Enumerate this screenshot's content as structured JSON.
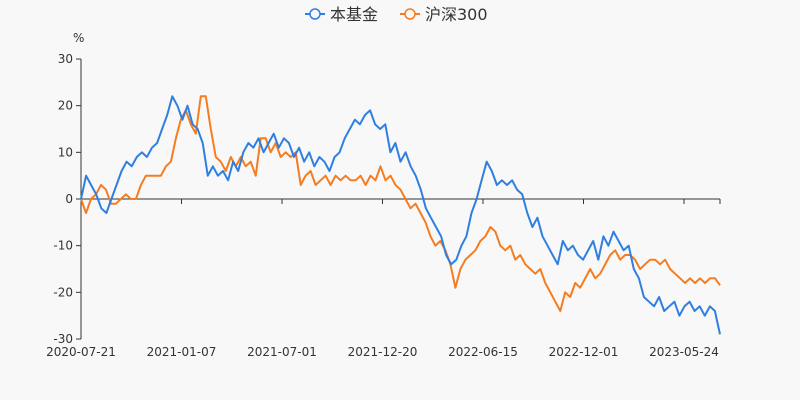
{
  "chart_data": {
    "type": "line",
    "title": "",
    "ylabel": "%",
    "xlabel": "",
    "ylim": [
      -30,
      30
    ],
    "yticks": [
      30,
      20,
      10,
      0,
      -10,
      -20,
      -30
    ],
    "xtick_labels": [
      "2020-07-21",
      "2021-01-07",
      "2021-07-01",
      "2021-12-20",
      "2022-06-15",
      "2022-12-01",
      "2023-05-24"
    ],
    "legend_position": "top-center",
    "series": [
      {
        "name": "本基金",
        "color": "#2f7fe0",
        "values": [
          0,
          5,
          3,
          1,
          -2,
          -3,
          0,
          3,
          6,
          8,
          7,
          9,
          10,
          9,
          11,
          12,
          15,
          18,
          22,
          20,
          17,
          20,
          16,
          15,
          12,
          5,
          7,
          5,
          6,
          4,
          8,
          6,
          10,
          12,
          11,
          13,
          10,
          12,
          14,
          11,
          13,
          12,
          9,
          11,
          8,
          10,
          7,
          9,
          8,
          6,
          9,
          10,
          13,
          15,
          17,
          16,
          18,
          19,
          16,
          15,
          16,
          10,
          12,
          8,
          10,
          7,
          5,
          2,
          -2,
          -4,
          -6,
          -8,
          -12,
          -14,
          -13,
          -10,
          -8,
          -3,
          0,
          4,
          8,
          6,
          3,
          4,
          3,
          4,
          2,
          1,
          -3,
          -6,
          -4,
          -8,
          -10,
          -12,
          -14,
          -9,
          -11,
          -10,
          -12,
          -13,
          -11,
          -9,
          -13,
          -8,
          -10,
          -7,
          -9,
          -11,
          -10,
          -15,
          -17,
          -21,
          -22,
          -23,
          -21,
          -24,
          -23,
          -22,
          -25,
          -23,
          -22,
          -24,
          -23,
          -25,
          -23,
          -24,
          -29
        ]
      },
      {
        "name": "沪深300",
        "color": "#f57c1f",
        "values": [
          0,
          -3,
          0,
          1,
          3,
          2,
          -1,
          -1,
          0,
          1,
          0,
          0,
          3,
          5,
          5,
          5,
          5,
          7,
          8,
          13,
          17,
          19,
          16,
          14,
          22,
          22,
          15,
          9,
          8,
          6,
          9,
          7,
          9,
          7,
          8,
          5,
          13,
          13,
          10,
          12,
          9,
          10,
          9,
          10,
          3,
          5,
          6,
          3,
          4,
          5,
          3,
          5,
          4,
          5,
          4,
          4,
          5,
          3,
          5,
          4,
          7,
          4,
          5,
          3,
          2,
          0,
          -2,
          -1,
          -3,
          -5,
          -8,
          -10,
          -9,
          -11,
          -14,
          -19,
          -15,
          -13,
          -12,
          -11,
          -9,
          -8,
          -6,
          -7,
          -10,
          -11,
          -10,
          -13,
          -12,
          -14,
          -15,
          -16,
          -15,
          -18,
          -20,
          -22,
          -24,
          -20,
          -21,
          -18,
          -19,
          -17,
          -15,
          -17,
          -16,
          -14,
          -12,
          -11,
          -13,
          -12,
          -12,
          -13,
          -15,
          -14,
          -13,
          -13,
          -14,
          -13,
          -15,
          -16,
          -17,
          -18,
          -17,
          -18,
          -17,
          -18,
          -17,
          -17,
          -18.5
        ]
      }
    ]
  }
}
